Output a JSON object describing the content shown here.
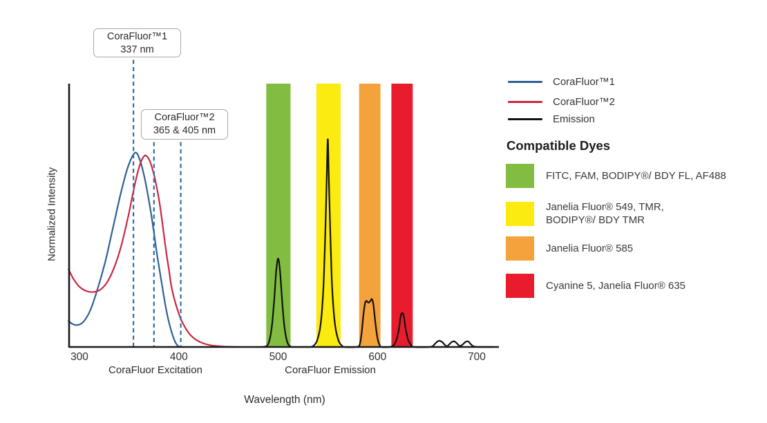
{
  "figure": {
    "background": "#ffffff"
  },
  "annotations": [
    {
      "title": "CoraFluor™1",
      "value": "337 nm"
    },
    {
      "title": "CoraFluor™2",
      "value": "365 & 405 nm"
    }
  ],
  "legend": {
    "items": [
      {
        "label": "CoraFluor™1",
        "color": "#2D6095"
      },
      {
        "label": "CoraFluor™2",
        "color": "#CC2641"
      },
      {
        "label": "Emission",
        "color": "#111111"
      }
    ]
  },
  "dyes": {
    "heading": "Compatible Dyes",
    "items": [
      {
        "label": "FITC, FAM, BODIPY®/ BDY FL, AF488",
        "color": "#82BC41"
      },
      {
        "label": "Janelia Fluor® 549, TMR,\nBODIPY®/ BDY TMR",
        "color": "#FBEB11"
      },
      {
        "label": "Janelia Fluor® 585",
        "color": "#F4A23B"
      },
      {
        "label": "Cyanine 5, Janelia Fluor® 635",
        "color": "#E81C2D"
      }
    ]
  },
  "chart_data": {
    "type": "line",
    "title": "",
    "xlabel": "Wavelength (nm)",
    "ylabel": "Normalized Intensity",
    "x_ticks": [
      300,
      400,
      500,
      600,
      700
    ],
    "x_range": [
      289,
      721
    ],
    "y_range": [
      0,
      1.36
    ],
    "grid": false,
    "legend_position": "top-right",
    "x_sections": [
      {
        "label": "CoraFluor Excitation"
      },
      {
        "label": "CoraFluor Emission"
      }
    ],
    "bands": [
      {
        "name": "green",
        "from_nm": 488,
        "to_nm": 512.5,
        "color": "#82BC41"
      },
      {
        "name": "yellow",
        "from_nm": 538.5,
        "to_nm": 563,
        "color": "#FBEB11"
      },
      {
        "name": "orange",
        "from_nm": 581.5,
        "to_nm": 603,
        "color": "#F4A23B"
      },
      {
        "name": "red",
        "from_nm": 614,
        "to_nm": 635.5,
        "color": "#E81C2D"
      }
    ],
    "marker_color": "#2E6DA4",
    "markers": [
      {
        "nm": 354.3,
        "from": "box1",
        "label_nm": 337
      },
      {
        "nm": 375,
        "from": "box2",
        "label_nm": 365
      },
      {
        "nm": 402,
        "from": "box2",
        "label_nm": 405
      }
    ],
    "series": [
      {
        "name": "CoraFluor™1",
        "kind": "excitation",
        "color": "#2D6095",
        "points": [
          [
            289,
            0.135
          ],
          [
            293,
            0.118
          ],
          [
            298,
            0.113
          ],
          [
            304,
            0.13
          ],
          [
            311,
            0.19
          ],
          [
            318,
            0.295
          ],
          [
            326,
            0.44
          ],
          [
            334,
            0.62
          ],
          [
            342,
            0.8
          ],
          [
            349,
            0.93
          ],
          [
            356,
            1.0
          ],
          [
            361,
            0.96
          ],
          [
            366,
            0.86
          ],
          [
            372,
            0.69
          ],
          [
            378,
            0.48
          ],
          [
            384,
            0.29
          ],
          [
            388,
            0.175
          ],
          [
            392,
            0.09
          ],
          [
            396,
            0.03
          ],
          [
            399,
            0.006
          ],
          [
            401,
            0
          ]
        ]
      },
      {
        "name": "CoraFluor™2",
        "kind": "excitation",
        "color": "#CC2641",
        "points": [
          [
            289,
            0.4
          ],
          [
            294,
            0.35
          ],
          [
            300,
            0.31
          ],
          [
            307,
            0.288
          ],
          [
            314,
            0.283
          ],
          [
            321,
            0.295
          ],
          [
            328,
            0.335
          ],
          [
            335,
            0.41
          ],
          [
            342,
            0.52
          ],
          [
            349,
            0.67
          ],
          [
            355,
            0.82
          ],
          [
            360,
            0.925
          ],
          [
            364,
            0.975
          ],
          [
            367,
            0.985
          ],
          [
            371,
            0.955
          ],
          [
            376,
            0.865
          ],
          [
            381,
            0.73
          ],
          [
            387,
            0.5
          ],
          [
            390,
            0.4
          ],
          [
            393,
            0.3
          ],
          [
            397,
            0.22
          ],
          [
            402,
            0.145
          ],
          [
            407,
            0.095
          ],
          [
            412,
            0.06
          ],
          [
            418,
            0.035
          ],
          [
            425,
            0.018
          ],
          [
            433,
            0.008
          ],
          [
            443,
            0.003
          ],
          [
            452,
            0.001
          ],
          [
            458,
            0
          ]
        ]
      },
      {
        "name": "Emission",
        "kind": "emission",
        "color": "#101010",
        "points": [
          [
            484,
            0
          ],
          [
            488,
            0.004
          ],
          [
            490,
            0.015
          ],
          [
            492,
            0.05
          ],
          [
            494,
            0.12
          ],
          [
            496,
            0.24
          ],
          [
            498,
            0.385
          ],
          [
            500,
            0.455
          ],
          [
            502,
            0.385
          ],
          [
            504,
            0.24
          ],
          [
            506,
            0.12
          ],
          [
            508,
            0.05
          ],
          [
            510,
            0.015
          ],
          [
            512,
            0.004
          ],
          [
            515,
            0
          ],
          [
            530,
            0
          ],
          [
            533,
            0
          ],
          [
            536,
            0.008
          ],
          [
            539,
            0.03
          ],
          [
            542,
            0.09
          ],
          [
            544,
            0.18
          ],
          [
            546,
            0.35
          ],
          [
            548,
            0.68
          ],
          [
            549,
            0.88
          ],
          [
            550,
            1.07
          ],
          [
            551,
            0.88
          ],
          [
            552,
            0.68
          ],
          [
            554,
            0.35
          ],
          [
            556,
            0.18
          ],
          [
            558,
            0.09
          ],
          [
            561,
            0.03
          ],
          [
            564,
            0.008
          ],
          [
            567,
            0
          ],
          [
            578,
            0
          ],
          [
            582,
            0.01
          ],
          [
            584,
            0.07
          ],
          [
            586,
            0.17
          ],
          [
            587.5,
            0.225
          ],
          [
            589,
            0.237
          ],
          [
            591,
            0.228
          ],
          [
            593,
            0.238
          ],
          [
            594.5,
            0.246
          ],
          [
            596,
            0.215
          ],
          [
            598,
            0.12
          ],
          [
            600,
            0.045
          ],
          [
            602,
            0.012
          ],
          [
            604,
            0
          ],
          [
            612,
            0
          ],
          [
            616,
            0.008
          ],
          [
            619,
            0.035
          ],
          [
            621.5,
            0.09
          ],
          [
            623.5,
            0.16
          ],
          [
            625,
            0.175
          ],
          [
            626.5,
            0.16
          ],
          [
            628.5,
            0.09
          ],
          [
            631,
            0.035
          ],
          [
            634,
            0.009
          ],
          [
            637,
            0
          ],
          [
            652,
            0
          ],
          [
            656,
            0.006
          ],
          [
            659,
            0.022
          ],
          [
            662,
            0.032
          ],
          [
            665,
            0.026
          ],
          [
            668,
            0.01
          ],
          [
            670,
            0.004
          ],
          [
            672,
            0.012
          ],
          [
            675,
            0.026
          ],
          [
            677.5,
            0.029
          ],
          [
            680,
            0.018
          ],
          [
            682,
            0.008
          ],
          [
            684,
            0.006
          ],
          [
            686,
            0.014
          ],
          [
            689,
            0.027
          ],
          [
            691.5,
            0.028
          ],
          [
            694,
            0.014
          ],
          [
            696,
            0.005
          ],
          [
            699,
            0.001
          ],
          [
            703,
            0
          ],
          [
            716,
            0
          ]
        ]
      }
    ]
  }
}
